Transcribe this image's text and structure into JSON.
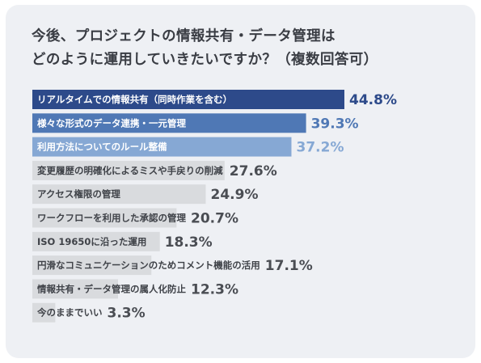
{
  "header": {
    "title_line1": "今後、プロジェクトの情報共有・データ管理は",
    "title_line2": "どのように運用していきたいですか？（複数回答可）"
  },
  "chart_data": {
    "type": "bar",
    "orientation": "horizontal",
    "title": "今後、プロジェクトの情報共有・データ管理はどのように運用していきたいですか？（複数回答可）",
    "unit": "%",
    "xlim": [
      0,
      44.8
    ],
    "grid": false,
    "categories": [
      "リアルタイムでの情報共有（同時作業を含む）",
      "様々な形式のデータ連携・一元管理",
      "利用方法についてのルール整備",
      "変更履歴の明確化によるミスや手戻りの削減",
      "アクセス権限の管理",
      "ワークフローを利用した承認の管理",
      "ISO 19650に沿った運用",
      "円滑なコミュニケーションのためコメント機能の活用",
      "情報共有・データ管理の属人化防止",
      "今のままでいい"
    ],
    "values": [
      44.8,
      39.3,
      37.2,
      27.6,
      24.9,
      20.7,
      18.3,
      17.1,
      12.3,
      3.3
    ],
    "value_labels": [
      "44.8%",
      "39.3%",
      "37.2%",
      "27.6%",
      "24.9%",
      "20.7%",
      "18.3%",
      "17.1%",
      "12.3%",
      "3.3%"
    ],
    "colors": {
      "bar_1": "#2d4a8a",
      "bar_2": "#4f78b5",
      "bar_3": "#86a8d4",
      "bar_other": "#d9dbde",
      "value_1": "#2d4a8a",
      "value_2": "#4f78b5",
      "value_3": "#86a8d4",
      "value_other": "#4a4d53",
      "label_on_dark": "#ffffff",
      "label_on_light": "#3f4248",
      "background": "#eef0f4"
    }
  }
}
